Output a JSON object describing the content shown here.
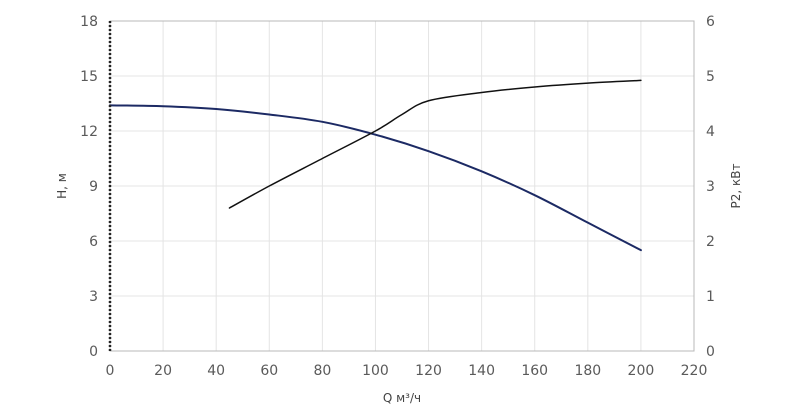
{
  "chart_data": {
    "type": "line",
    "xlabel": "Q м³/ч",
    "ylabel_left": "H, м",
    "ylabel_right": "P2, кВт",
    "x_ticks": [
      "0",
      "20",
      "40",
      "60",
      "80",
      "100",
      "120",
      "140",
      "160",
      "180",
      "200",
      "220"
    ],
    "y_left_ticks": [
      "0",
      "3",
      "6",
      "9",
      "12",
      "15",
      "18"
    ],
    "y_right_ticks": [
      "0",
      "1",
      "2",
      "3",
      "4",
      "5",
      "6"
    ],
    "xlim": [
      0,
      220
    ],
    "ylim_left": [
      0,
      18
    ],
    "ylim_right": [
      0,
      6
    ],
    "grid": true,
    "series": [
      {
        "axis": "left",
        "color": "#1c2a64",
        "x": [
          0,
          20,
          40,
          60,
          80,
          100,
          120,
          140,
          160,
          180,
          200
        ],
        "y": [
          13.4,
          13.35,
          13.2,
          12.9,
          12.5,
          11.8,
          10.9,
          9.8,
          8.5,
          7.0,
          5.5
        ]
      },
      {
        "axis": "right",
        "color": "#111111",
        "x": [
          45,
          60,
          80,
          100,
          110,
          120,
          140,
          160,
          180,
          200
        ],
        "y": [
          2.6,
          3.0,
          3.5,
          4.0,
          4.3,
          4.55,
          4.7,
          4.8,
          4.87,
          4.92
        ]
      }
    ]
  }
}
